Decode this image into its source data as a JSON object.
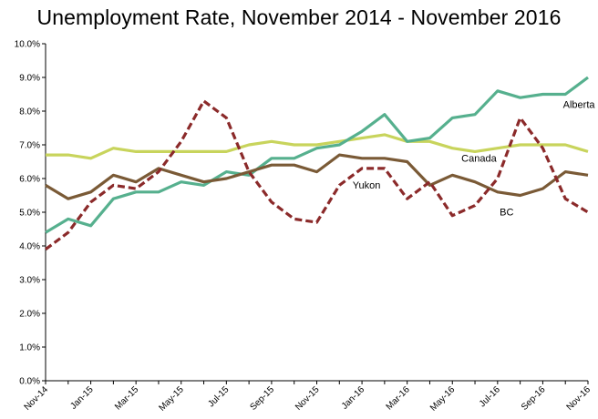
{
  "chart_data": {
    "type": "line",
    "title": "Unemployment Rate, November 2014 - November 2016",
    "xlabel": "",
    "ylabel": "",
    "ylim": [
      0,
      10
    ],
    "yticks": [
      "0.0%",
      "1.0%",
      "2.0%",
      "3.0%",
      "4.0%",
      "5.0%",
      "6.0%",
      "7.0%",
      "8.0%",
      "9.0%",
      "10.0%"
    ],
    "grid": false,
    "legend": "none",
    "x": [
      "Nov-14",
      "Dec-14",
      "Jan-15",
      "Feb-15",
      "Mar-15",
      "Apr-15",
      "May-15",
      "Jun-15",
      "Jul-15",
      "Aug-15",
      "Sep-15",
      "Oct-15",
      "Nov-15",
      "Dec-15",
      "Jan-16",
      "Feb-16",
      "Mar-16",
      "Apr-16",
      "May-16",
      "Jun-16",
      "Jul-16",
      "Aug-16",
      "Sep-16",
      "Oct-16",
      "Nov-16"
    ],
    "xticks": [
      "Nov-14",
      "Jan-15",
      "Mar-15",
      "May-15",
      "Jul-15",
      "Sep-15",
      "Nov-15",
      "Jan-16",
      "Mar-16",
      "May-16",
      "Jul-16",
      "Sep-16",
      "Nov-16"
    ],
    "series": [
      {
        "name": "Canada",
        "color": "#c8d45c",
        "dash": "solid",
        "values": [
          6.7,
          6.7,
          6.6,
          6.9,
          6.8,
          6.8,
          6.8,
          6.8,
          6.8,
          7.0,
          7.1,
          7.0,
          7.0,
          7.1,
          7.2,
          7.3,
          7.1,
          7.1,
          6.9,
          6.8,
          6.9,
          7.0,
          7.0,
          7.0,
          6.8
        ]
      },
      {
        "name": "Alberta",
        "color": "#56b08e",
        "dash": "solid",
        "values": [
          4.4,
          4.8,
          4.6,
          5.4,
          5.6,
          5.6,
          5.9,
          5.8,
          6.2,
          6.1,
          6.6,
          6.6,
          6.9,
          7.0,
          7.4,
          7.9,
          7.1,
          7.2,
          7.8,
          7.9,
          8.6,
          8.4,
          8.5,
          8.5,
          9.0
        ]
      },
      {
        "name": "BC",
        "color": "#7a5a36",
        "dash": "solid",
        "values": [
          5.8,
          5.4,
          5.6,
          6.1,
          5.9,
          6.3,
          6.1,
          5.9,
          6.0,
          6.2,
          6.4,
          6.4,
          6.2,
          6.7,
          6.6,
          6.6,
          6.5,
          5.8,
          6.1,
          5.9,
          5.6,
          5.5,
          5.7,
          6.2,
          6.1
        ]
      },
      {
        "name": "Yukon",
        "color": "#8b2a2a",
        "dash": "dashed",
        "values": [
          3.9,
          4.4,
          5.3,
          5.8,
          5.7,
          6.2,
          7.1,
          8.3,
          7.8,
          6.2,
          5.3,
          4.8,
          4.7,
          5.8,
          6.3,
          6.3,
          5.4,
          5.9,
          4.9,
          5.2,
          6.0,
          7.8,
          6.9,
          5.4,
          5.0
        ]
      }
    ]
  }
}
